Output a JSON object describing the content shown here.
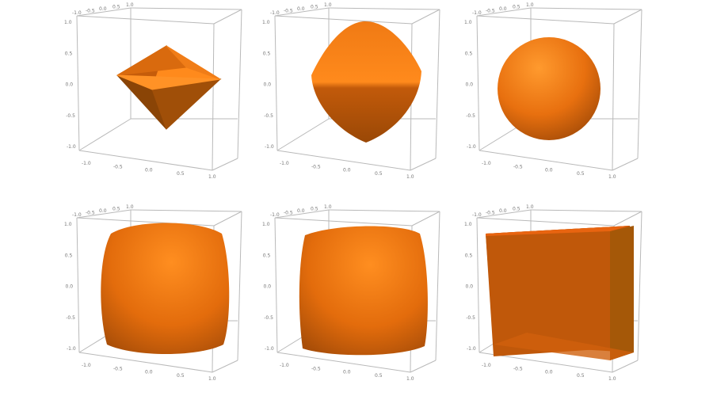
{
  "colors": {
    "light": "#ff8a1c",
    "mid": "#e8700f",
    "dark": "#a84e08",
    "box": "#b9b9b9"
  },
  "ticks": [
    "-1.0",
    "-0.5",
    "0.0",
    "0.5",
    "1.0"
  ],
  "vticks": [
    "1.0",
    "0.5",
    "0.0",
    "-0.5",
    "-1.0"
  ],
  "panels": [
    {
      "shape": "octahedron"
    },
    {
      "shape": "rounded-octahedron"
    },
    {
      "shape": "sphere"
    },
    {
      "shape": "superellipsoid"
    },
    {
      "shape": "superellipsoid-boxy"
    },
    {
      "shape": "cube"
    }
  ]
}
